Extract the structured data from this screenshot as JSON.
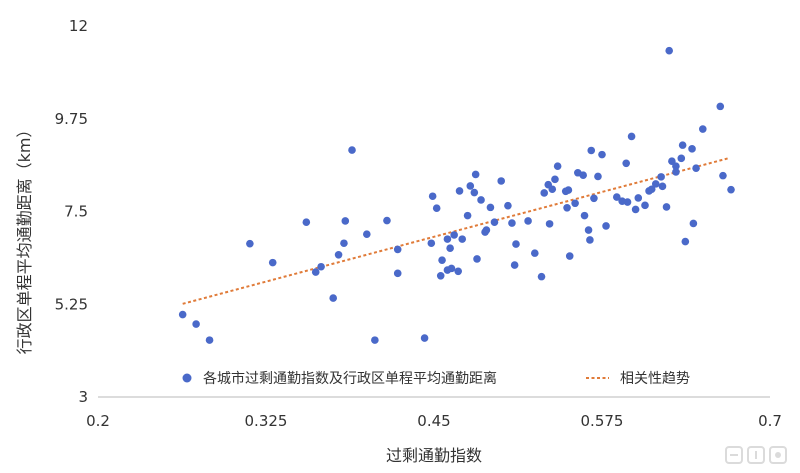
{
  "chart_data": {
    "type": "scatter",
    "xlabel": "过剩通勤指数",
    "ylabel": "行政区单程平均通勤距离（km）",
    "xlim": [
      0.2,
      0.7
    ],
    "ylim": [
      3,
      12
    ],
    "x_ticks": [
      "0.2",
      "0.325",
      "0.45",
      "0.575",
      "0.7"
    ],
    "y_ticks": [
      "3",
      "5.25",
      "7.5",
      "9.75",
      "12"
    ],
    "x_tick_values": [
      0.2,
      0.325,
      0.45,
      0.575,
      0.7
    ],
    "y_tick_values": [
      3,
      5.25,
      7.5,
      9.75,
      12
    ],
    "grid": false,
    "legend_position": "bottom",
    "series": [
      {
        "name": "各城市过剩通勤指数及行政区单程平均通勤距离",
        "color": "#4a69c9",
        "points": [
          [
            0.263,
            5.0
          ],
          [
            0.273,
            4.77
          ],
          [
            0.283,
            4.38
          ],
          [
            0.313,
            6.72
          ],
          [
            0.33,
            6.26
          ],
          [
            0.355,
            7.24
          ],
          [
            0.362,
            6.03
          ],
          [
            0.366,
            6.16
          ],
          [
            0.375,
            5.4
          ],
          [
            0.379,
            6.45
          ],
          [
            0.383,
            6.73
          ],
          [
            0.384,
            7.27
          ],
          [
            0.389,
            8.99
          ],
          [
            0.4,
            6.95
          ],
          [
            0.406,
            4.38
          ],
          [
            0.415,
            7.28
          ],
          [
            0.423,
            6.58
          ],
          [
            0.423,
            6.0
          ],
          [
            0.443,
            4.43
          ],
          [
            0.448,
            6.73
          ],
          [
            0.449,
            7.87
          ],
          [
            0.452,
            7.58
          ],
          [
            0.455,
            5.94
          ],
          [
            0.456,
            6.32
          ],
          [
            0.46,
            6.08
          ],
          [
            0.46,
            6.83
          ],
          [
            0.462,
            6.61
          ],
          [
            0.463,
            6.12
          ],
          [
            0.465,
            6.93
          ],
          [
            0.468,
            6.05
          ],
          [
            0.469,
            8.0
          ],
          [
            0.471,
            6.83
          ],
          [
            0.475,
            7.4
          ],
          [
            0.477,
            8.12
          ],
          [
            0.48,
            7.96
          ],
          [
            0.481,
            8.4
          ],
          [
            0.482,
            6.35
          ],
          [
            0.485,
            7.78
          ],
          [
            0.488,
            7.0
          ],
          [
            0.489,
            7.05
          ],
          [
            0.492,
            7.6
          ],
          [
            0.495,
            7.24
          ],
          [
            0.5,
            8.24
          ],
          [
            0.505,
            7.64
          ],
          [
            0.508,
            7.22
          ],
          [
            0.51,
            6.2
          ],
          [
            0.511,
            6.71
          ],
          [
            0.52,
            7.27
          ],
          [
            0.525,
            6.49
          ],
          [
            0.53,
            5.92
          ],
          [
            0.532,
            7.95
          ],
          [
            0.535,
            8.15
          ],
          [
            0.536,
            7.2
          ],
          [
            0.538,
            8.04
          ],
          [
            0.54,
            8.28
          ],
          [
            0.542,
            8.6
          ],
          [
            0.548,
            7.99
          ],
          [
            0.549,
            7.59
          ],
          [
            0.55,
            8.02
          ],
          [
            0.551,
            6.42
          ],
          [
            0.555,
            7.7
          ],
          [
            0.557,
            8.44
          ],
          [
            0.561,
            8.38
          ],
          [
            0.562,
            7.4
          ],
          [
            0.565,
            7.05
          ],
          [
            0.566,
            6.81
          ],
          [
            0.567,
            8.98
          ],
          [
            0.569,
            7.82
          ],
          [
            0.572,
            8.35
          ],
          [
            0.575,
            8.88
          ],
          [
            0.578,
            7.15
          ],
          [
            0.586,
            7.85
          ],
          [
            0.59,
            7.75
          ],
          [
            0.593,
            8.67
          ],
          [
            0.594,
            7.73
          ],
          [
            0.597,
            9.32
          ],
          [
            0.6,
            7.55
          ],
          [
            0.602,
            7.83
          ],
          [
            0.607,
            7.65
          ],
          [
            0.61,
            8.0
          ],
          [
            0.612,
            8.04
          ],
          [
            0.615,
            8.17
          ],
          [
            0.619,
            8.34
          ],
          [
            0.62,
            8.11
          ],
          [
            0.623,
            7.61
          ],
          [
            0.627,
            8.72
          ],
          [
            0.63,
            8.46
          ],
          [
            0.63,
            8.6
          ],
          [
            0.634,
            8.79
          ],
          [
            0.635,
            9.11
          ],
          [
            0.637,
            6.77
          ],
          [
            0.642,
            9.02
          ],
          [
            0.643,
            7.21
          ],
          [
            0.645,
            8.55
          ],
          [
            0.65,
            9.5
          ],
          [
            0.663,
            10.05
          ],
          [
            0.665,
            8.37
          ],
          [
            0.671,
            8.03
          ],
          [
            0.625,
            11.4
          ]
        ]
      }
    ],
    "trend": {
      "name": "相关性趋势",
      "color": "#e07b39",
      "style": "dashed",
      "x": [
        0.263,
        0.67
      ],
      "y": [
        5.26,
        8.8
      ]
    }
  },
  "watermark": {
    "icon": "brand-logo-icon",
    "color": "#9a9a9a"
  }
}
